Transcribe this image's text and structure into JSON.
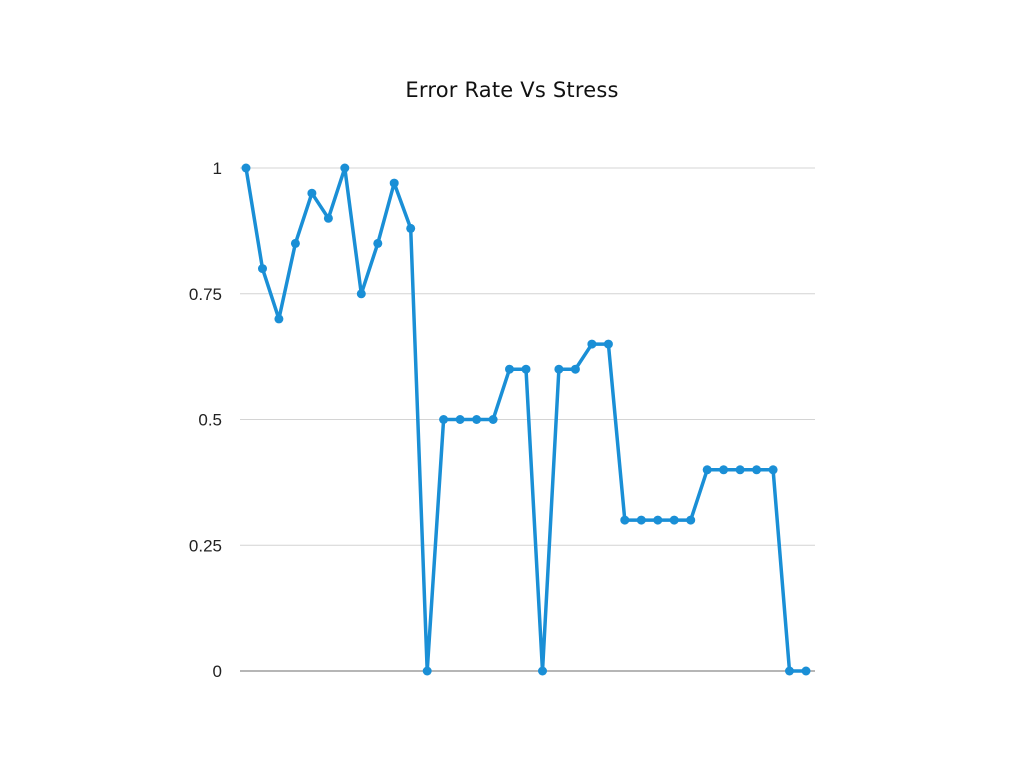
{
  "chart_data": {
    "type": "line",
    "title": "Error Rate Vs Stress",
    "xlabel": "",
    "ylabel": "",
    "ylim": [
      0,
      1
    ],
    "yticks": [
      "0",
      "0.25",
      "0.5",
      "0.75",
      "1"
    ],
    "grid": true,
    "legend": "none",
    "series": [
      {
        "color": "#1a8fd6",
        "values": [
          1,
          0.8,
          0.7,
          0.85,
          0.95,
          0.9,
          1,
          0.75,
          0.85,
          0.97,
          0.88,
          0,
          0.5,
          0.5,
          0.5,
          0.5,
          0.6,
          0.6,
          0,
          0.6,
          0.6,
          0.65,
          0.65,
          0.3,
          0.3,
          0.3,
          0.3,
          0.3,
          0.4,
          0.4,
          0.4,
          0.4,
          0.4,
          0,
          0
        ]
      }
    ]
  }
}
